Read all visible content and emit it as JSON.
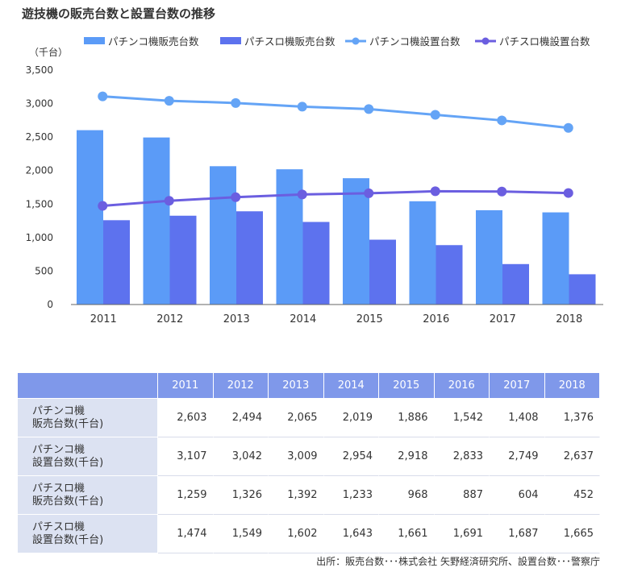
{
  "title": "遊技機の販売台数と設置台数の推移",
  "source": "出所：販売台数･･･株式会社 矢野経済研究所、設置台数･･･警察庁",
  "colors": {
    "pachinko_sales": "#5b9bf7",
    "pachislot_sales": "#5d72ee",
    "pachinko_installed": "#64a4f6",
    "pachislot_installed": "#6b5ee0",
    "header_bg": "#7f98ea",
    "row_header_bg": "#dce2f2"
  },
  "chart_data": {
    "type": "bar",
    "title": "遊技機の販売台数と設置台数の推移",
    "ylabel": "（千台）",
    "ylim": [
      0,
      3500
    ],
    "yticks": [
      "0",
      "500",
      "1,000",
      "1,500",
      "2,000",
      "2,500",
      "3,000",
      "3,500"
    ],
    "ytick_values": [
      0,
      500,
      1000,
      1500,
      2000,
      2500,
      3000,
      3500
    ],
    "categories": [
      "2011",
      "2012",
      "2013",
      "2014",
      "2015",
      "2016",
      "2017",
      "2018"
    ],
    "grid": false,
    "legend_position": "top",
    "series": [
      {
        "name": "パチンコ機販売台数",
        "kind": "bar",
        "values": [
          2603,
          2494,
          2065,
          2019,
          1886,
          1542,
          1408,
          1376
        ]
      },
      {
        "name": "パチスロ機販売台数",
        "kind": "bar",
        "values": [
          1259,
          1326,
          1392,
          1233,
          968,
          887,
          604,
          452
        ]
      },
      {
        "name": "パチンコ機設置台数",
        "kind": "line",
        "values": [
          3107,
          3042,
          3009,
          2954,
          2918,
          2833,
          2749,
          2637
        ]
      },
      {
        "name": "パチスロ機設置台数",
        "kind": "line",
        "values": [
          1474,
          1549,
          1602,
          1643,
          1661,
          1691,
          1687,
          1665
        ]
      }
    ]
  },
  "table": {
    "rows": [
      {
        "label1": "パチンコ機",
        "label2": "販売台数(千台)",
        "values": [
          "2,603",
          "2,494",
          "2,065",
          "2,019",
          "1,886",
          "1,542",
          "1,408",
          "1,376"
        ]
      },
      {
        "label1": "パチンコ機",
        "label2": "設置台数(千台)",
        "values": [
          "3,107",
          "3,042",
          "3,009",
          "2,954",
          "2,918",
          "2,833",
          "2,749",
          "2,637"
        ]
      },
      {
        "label1": "パチスロ機",
        "label2": "販売台数(千台)",
        "values": [
          "1,259",
          "1,326",
          "1,392",
          "1,233",
          "968",
          "887",
          "604",
          "452"
        ]
      },
      {
        "label1": "パチスロ機",
        "label2": "設置台数(千台)",
        "values": [
          "1,474",
          "1,549",
          "1,602",
          "1,643",
          "1,661",
          "1,691",
          "1,687",
          "1,665"
        ]
      }
    ]
  }
}
